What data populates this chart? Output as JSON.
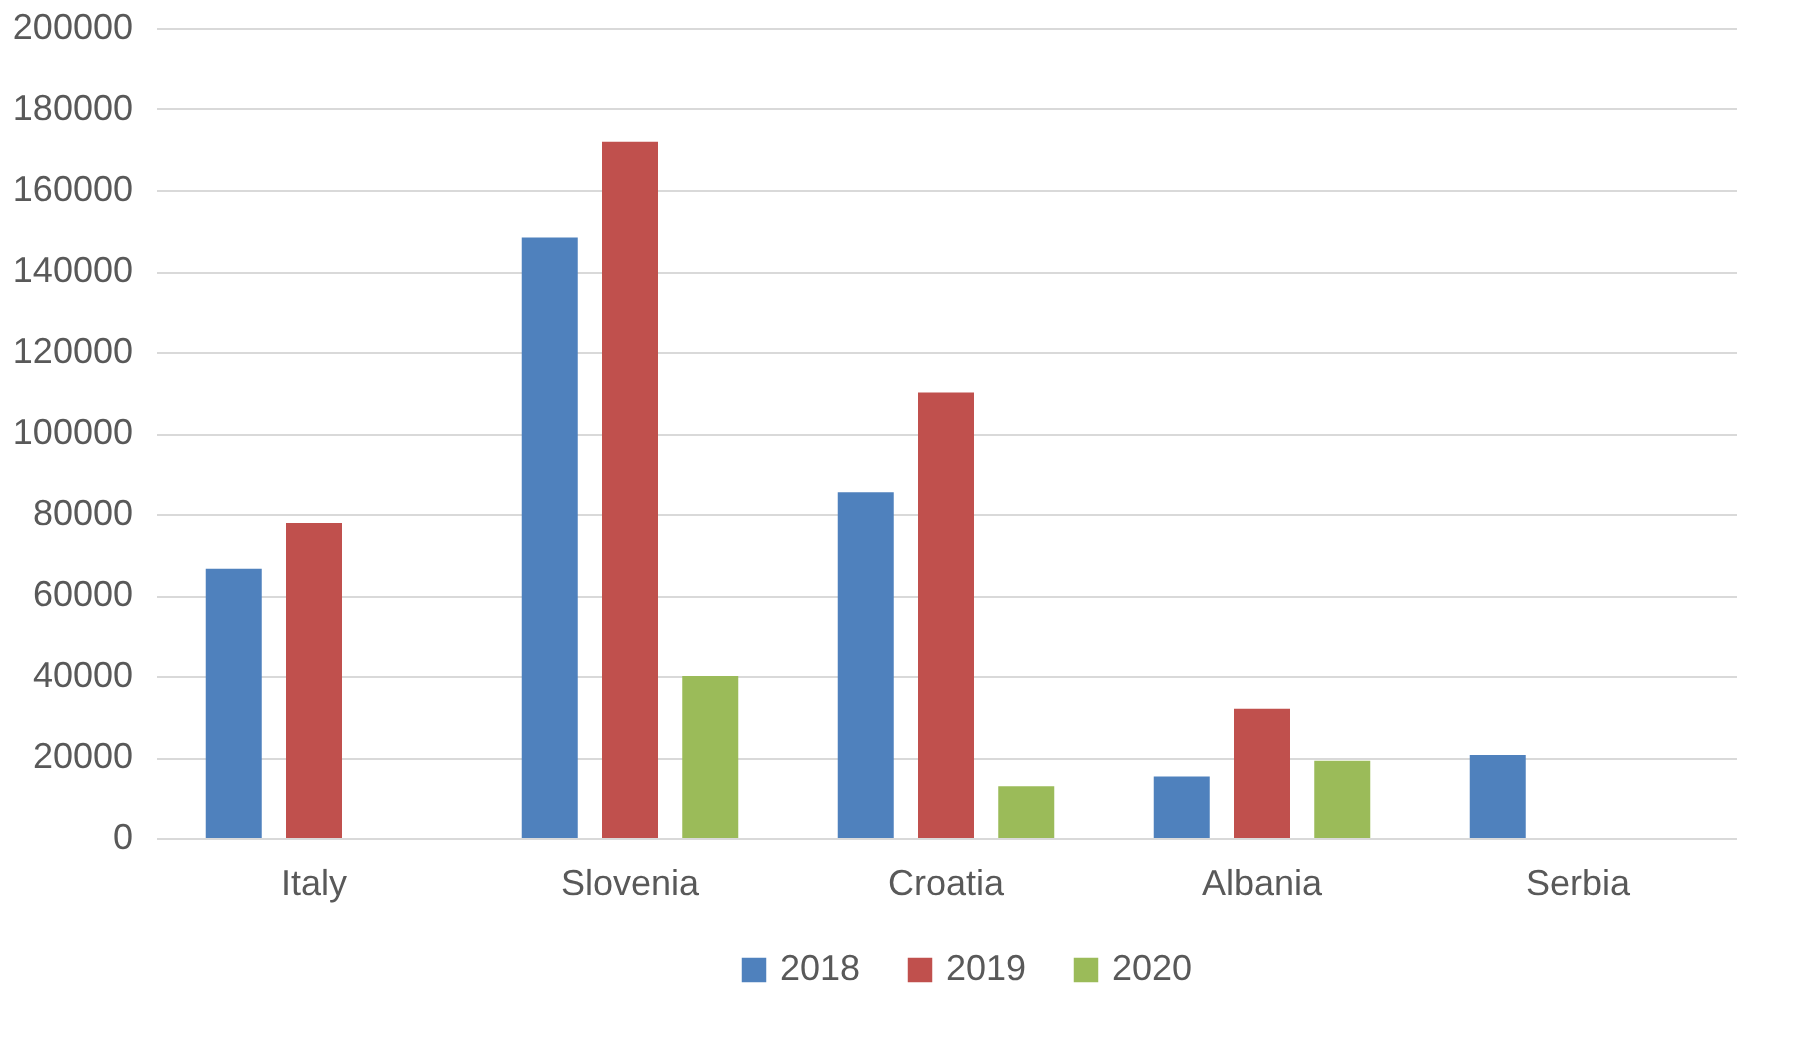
{
  "chart_data": {
    "type": "bar",
    "categories": [
      "Italy",
      "Slovenia",
      "Croatia",
      "Albania",
      "Serbia"
    ],
    "series": [
      {
        "name": "2018",
        "color": "#4f81bd",
        "values": [
          66500,
          148300,
          85400,
          15200,
          20500
        ]
      },
      {
        "name": "2019",
        "color": "#c0504d",
        "values": [
          77800,
          171900,
          110000,
          31900,
          null
        ]
      },
      {
        "name": "2020",
        "color": "#9bbb59",
        "values": [
          null,
          40000,
          12800,
          19100,
          null
        ]
      }
    ],
    "ylim": [
      0,
      200000
    ],
    "yticks": [
      0,
      20000,
      40000,
      60000,
      80000,
      100000,
      120000,
      140000,
      160000,
      180000,
      200000
    ],
    "grid": "y",
    "legend": "bottom"
  }
}
